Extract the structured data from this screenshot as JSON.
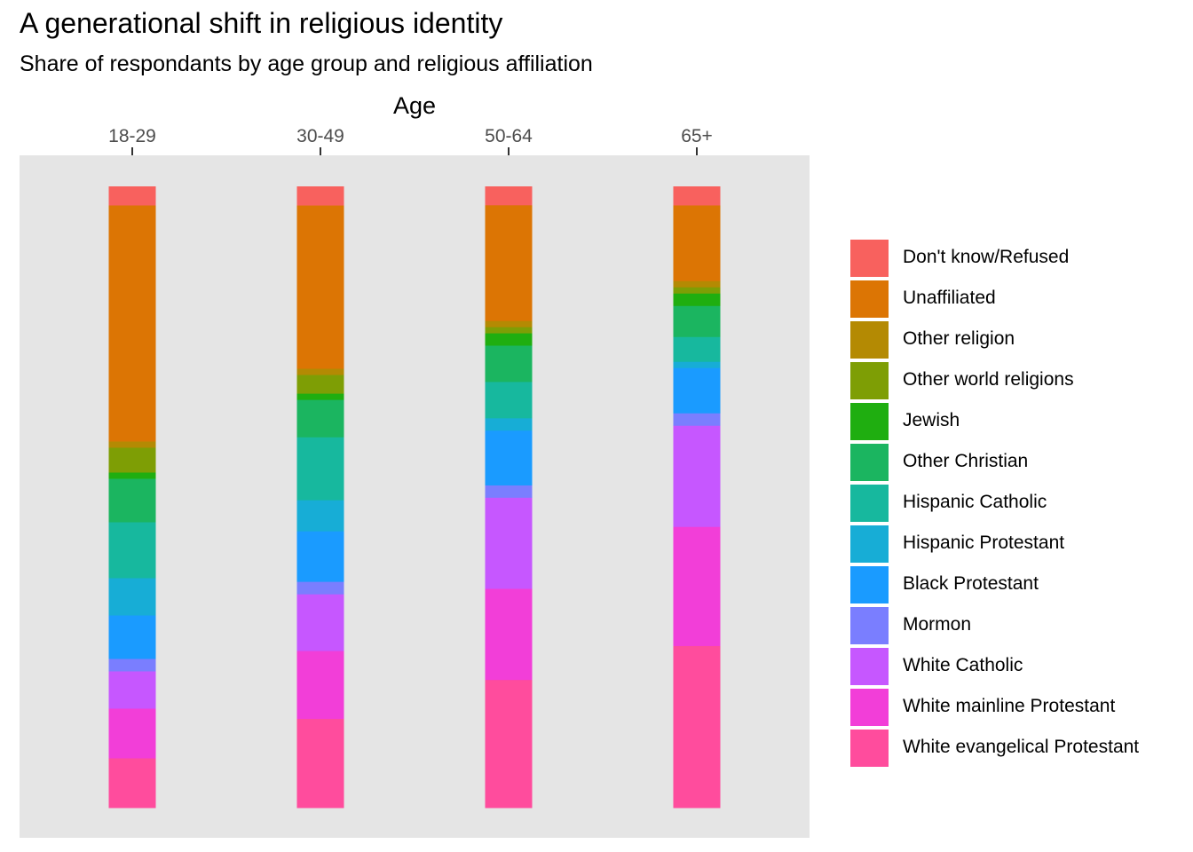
{
  "chart_data": {
    "type": "bar",
    "stacked": true,
    "orientation": "vertical",
    "title": "A generational shift in religious identity",
    "subtitle": "Share of respondants by age group and religious affiliation",
    "xlabel": "Age",
    "x_axis_position": "top",
    "y_axis_shown": false,
    "categories": [
      "18-29",
      "30-49",
      "50-64",
      "65+"
    ],
    "legend_position": "right",
    "series": [
      {
        "name": "White evangelical Protestant",
        "color": "#FF4C9D",
        "values": [
          8,
          14.3,
          20.8,
          26.1
        ]
      },
      {
        "name": "White mainline Protestant",
        "color": "#F23ED8",
        "values": [
          8,
          10.9,
          14.8,
          19.2
        ]
      },
      {
        "name": "White Catholic",
        "color": "#C657FF",
        "values": [
          6,
          9.1,
          14.8,
          16.3
        ]
      },
      {
        "name": "Mormon",
        "color": "#7A7EFF",
        "values": [
          2,
          2,
          2,
          2
        ]
      },
      {
        "name": "Black Protestant",
        "color": "#1A9BFF",
        "values": [
          7,
          8.1,
          8.9,
          7.3
        ]
      },
      {
        "name": "Hispanic Protestant",
        "color": "#17ADD6",
        "values": [
          6,
          5,
          2,
          1
        ]
      },
      {
        "name": "Hispanic Catholic",
        "color": "#17B89E",
        "values": [
          9,
          10.1,
          5.9,
          4
        ]
      },
      {
        "name": "Other Christian",
        "color": "#1BB560",
        "values": [
          7,
          6,
          5.9,
          5
        ]
      },
      {
        "name": "Jewish",
        "color": "#1FAE10",
        "values": [
          1,
          1,
          2,
          2
        ]
      },
      {
        "name": "Other world religions",
        "color": "#7E9E05",
        "values": [
          4,
          3,
          1,
          1
        ]
      },
      {
        "name": "Other religion",
        "color": "#B48A03",
        "values": [
          1,
          1,
          1,
          1
        ]
      },
      {
        "name": "Unaffiliated",
        "color": "#DC7504",
        "values": [
          38,
          26.2,
          18.8,
          12.2
        ]
      },
      {
        "name": "Don't know/Refused",
        "color": "#F8615E",
        "values": [
          3,
          3,
          3,
          3
        ]
      }
    ],
    "legend_order": [
      "Don't know/Refused",
      "Unaffiliated",
      "Other religion",
      "Other world religions",
      "Jewish",
      "Other Christian",
      "Hispanic Catholic",
      "Hispanic Protestant",
      "Black Protestant",
      "Mormon",
      "White Catholic",
      "White mainline Protestant",
      "White evangelical Protestant"
    ],
    "panel_background": "#E5E5E5",
    "grid": false
  }
}
